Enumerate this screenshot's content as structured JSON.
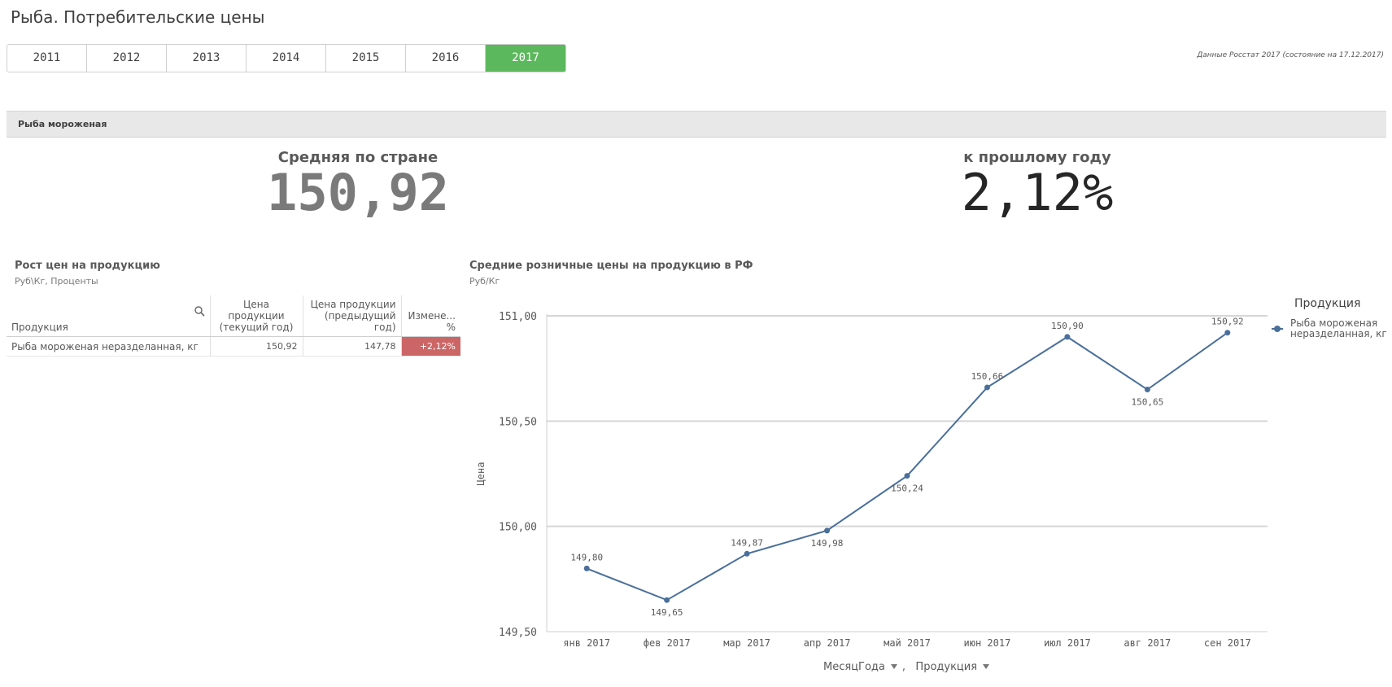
{
  "header": {
    "title": "Рыба. Потребительские цены",
    "source_note": "Данные Росстат 2017 (состояние на 17.12.2017)"
  },
  "year_tabs": [
    {
      "label": "2011",
      "selected": false
    },
    {
      "label": "2012",
      "selected": false
    },
    {
      "label": "2013",
      "selected": false
    },
    {
      "label": "2014",
      "selected": false
    },
    {
      "label": "2015",
      "selected": false
    },
    {
      "label": "2016",
      "selected": false
    },
    {
      "label": "2017",
      "selected": true
    }
  ],
  "section": {
    "label": "Рыба мороженая"
  },
  "kpis": {
    "average": {
      "label": "Средняя по стране",
      "value": "150,92"
    },
    "change": {
      "label": "к прошлому году",
      "value": "2,12%"
    }
  },
  "table_panel": {
    "title": "Рост цен на продукцию",
    "subtitle": "Руб\\Кг, Проценты",
    "columns": [
      "Продукция",
      "Цена продукции (текущий год)",
      "Цена продукции (предыдущий год)",
      "Измене... %"
    ],
    "column_lines": [
      [
        "Продукция"
      ],
      [
        "Цена продукции",
        "(текущий год)"
      ],
      [
        "Цена продукции",
        "(предыдущий",
        "год)"
      ],
      [
        "Измене...",
        "%"
      ]
    ],
    "rows": [
      {
        "product": "Рыба мороженая неразделанная, кг",
        "current": "150,92",
        "previous": "147,78",
        "change": "+2,12%"
      }
    ],
    "colors": {
      "change_negative_bg": "#cc6666"
    }
  },
  "chart_panel": {
    "title": "Средние розничные цены на продукцию в РФ",
    "subtitle": "Руб/Кг",
    "legend_title": "Продукция",
    "dimension_controls": [
      "МесяцГода",
      "Продукция"
    ],
    "dimension_separator": ","
  },
  "chart_data": {
    "type": "line",
    "title": "Средние розничные цены на продукцию в РФ",
    "subtitle": "Руб/Кг",
    "xlabel": "",
    "ylabel": "Цена",
    "categories": [
      "янв 2017",
      "фев 2017",
      "мар 2017",
      "апр 2017",
      "май 2017",
      "июн 2017",
      "июл 2017",
      "авг 2017",
      "сен 2017"
    ],
    "series": [
      {
        "name": "Рыба мороженая неразделанная, кг",
        "values": [
          149.8,
          149.65,
          149.87,
          149.98,
          150.24,
          150.66,
          150.9,
          150.65,
          150.92
        ],
        "labels": [
          "149,80",
          "149,65",
          "149,87",
          "149,98",
          "150,24",
          "150,66",
          "150,90",
          "150,65",
          "150,92"
        ],
        "label_position": [
          "above",
          "below",
          "above",
          "below",
          "below",
          "above",
          "above",
          "below",
          "above"
        ],
        "color": "#4a6f9a"
      }
    ],
    "ylim": [
      149.5,
      151.0
    ],
    "yticks": [
      149.5,
      150.0,
      150.5,
      151.0
    ],
    "ytick_labels": [
      "149,50",
      "150,00",
      "150,50",
      "151,00"
    ],
    "grid": true,
    "legend_position": "right"
  }
}
